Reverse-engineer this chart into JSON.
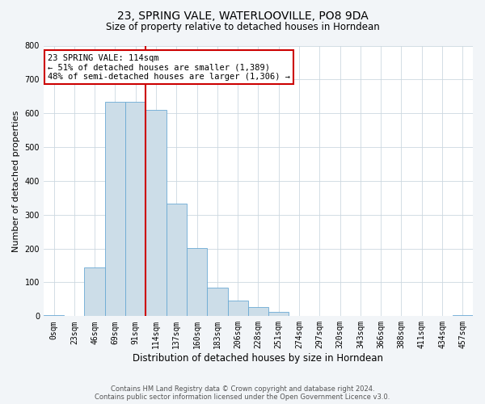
{
  "title": "23, SPRING VALE, WATERLOOVILLE, PO8 9DA",
  "subtitle": "Size of property relative to detached houses in Horndean",
  "xlabel": "Distribution of detached houses by size in Horndean",
  "ylabel": "Number of detached properties",
  "bin_labels": [
    "0sqm",
    "23sqm",
    "46sqm",
    "69sqm",
    "91sqm",
    "114sqm",
    "137sqm",
    "160sqm",
    "183sqm",
    "206sqm",
    "228sqm",
    "251sqm",
    "274sqm",
    "297sqm",
    "320sqm",
    "343sqm",
    "366sqm",
    "388sqm",
    "411sqm",
    "434sqm",
    "457sqm"
  ],
  "bar_heights": [
    3,
    0,
    145,
    635,
    633,
    610,
    332,
    201,
    84,
    46,
    27,
    12,
    0,
    0,
    0,
    0,
    0,
    0,
    0,
    0,
    3
  ],
  "bar_color": "#ccdde8",
  "bar_edgecolor": "#6aaad4",
  "vline_color": "#cc0000",
  "vline_x": 5,
  "annotation_text": "23 SPRING VALE: 114sqm\n← 51% of detached houses are smaller (1,389)\n48% of semi-detached houses are larger (1,306) →",
  "annotation_box_facecolor": "#ffffff",
  "annotation_box_edgecolor": "#cc0000",
  "ylim": [
    0,
    800
  ],
  "yticks": [
    0,
    100,
    200,
    300,
    400,
    500,
    600,
    700,
    800
  ],
  "title_fontsize": 10,
  "subtitle_fontsize": 8.5,
  "ylabel_fontsize": 8,
  "xlabel_fontsize": 8.5,
  "tick_fontsize": 7,
  "annot_fontsize": 7.5,
  "footer_line1": "Contains HM Land Registry data © Crown copyright and database right 2024.",
  "footer_line2": "Contains public sector information licensed under the Open Government Licence v3.0.",
  "background_color": "#f2f5f8",
  "plot_bg_color": "#ffffff",
  "grid_color": "#ccd8e0"
}
